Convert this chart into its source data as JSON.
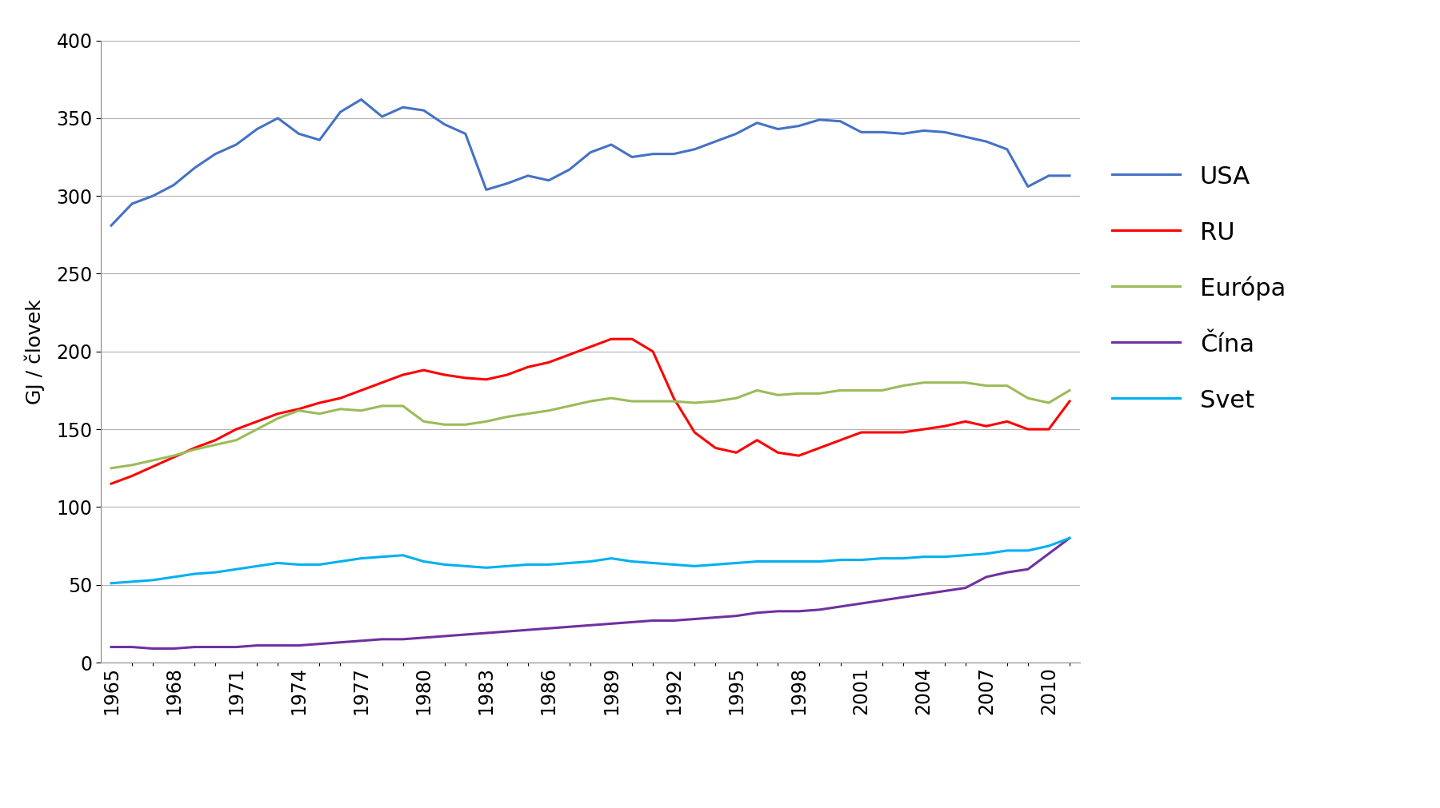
{
  "years": [
    1965,
    1966,
    1967,
    1968,
    1969,
    1970,
    1971,
    1972,
    1973,
    1974,
    1975,
    1976,
    1977,
    1978,
    1979,
    1980,
    1981,
    1982,
    1983,
    1984,
    1985,
    1986,
    1987,
    1988,
    1989,
    1990,
    1991,
    1992,
    1993,
    1994,
    1995,
    1996,
    1997,
    1998,
    1999,
    2000,
    2001,
    2002,
    2003,
    2004,
    2005,
    2006,
    2007,
    2008,
    2009,
    2010,
    2011
  ],
  "USA": [
    281,
    295,
    300,
    307,
    318,
    327,
    333,
    343,
    350,
    340,
    336,
    354,
    362,
    351,
    357,
    355,
    346,
    340,
    304,
    308,
    313,
    310,
    317,
    328,
    333,
    325,
    327,
    327,
    330,
    335,
    340,
    347,
    343,
    345,
    349,
    348,
    341,
    341,
    340,
    342,
    341,
    338,
    335,
    330,
    306,
    313,
    313
  ],
  "RU": [
    115,
    120,
    126,
    132,
    138,
    143,
    150,
    155,
    160,
    163,
    167,
    170,
    175,
    180,
    185,
    188,
    185,
    183,
    182,
    185,
    190,
    193,
    198,
    203,
    208,
    208,
    200,
    170,
    148,
    138,
    135,
    143,
    135,
    133,
    138,
    143,
    148,
    148,
    148,
    150,
    152,
    155,
    152,
    155,
    150,
    150,
    168
  ],
  "Europa": [
    125,
    127,
    130,
    133,
    137,
    140,
    143,
    150,
    157,
    162,
    160,
    163,
    162,
    165,
    165,
    155,
    153,
    153,
    155,
    158,
    160,
    162,
    165,
    168,
    170,
    168,
    168,
    168,
    167,
    168,
    170,
    175,
    172,
    173,
    173,
    175,
    175,
    175,
    178,
    180,
    180,
    180,
    178,
    178,
    170,
    167,
    175
  ],
  "Cina": [
    10,
    10,
    9,
    9,
    10,
    10,
    10,
    11,
    11,
    11,
    12,
    13,
    14,
    15,
    15,
    16,
    17,
    18,
    19,
    20,
    21,
    22,
    23,
    24,
    25,
    26,
    27,
    27,
    28,
    29,
    30,
    32,
    33,
    33,
    34,
    36,
    38,
    40,
    42,
    44,
    46,
    48,
    55,
    58,
    60,
    70,
    80
  ],
  "Svet": [
    51,
    52,
    53,
    55,
    57,
    58,
    60,
    62,
    64,
    63,
    63,
    65,
    67,
    68,
    69,
    65,
    63,
    62,
    61,
    62,
    63,
    63,
    64,
    65,
    67,
    65,
    64,
    63,
    62,
    63,
    64,
    65,
    65,
    65,
    65,
    66,
    66,
    67,
    67,
    68,
    68,
    69,
    70,
    72,
    72,
    75,
    80
  ],
  "colors": {
    "USA": "#4472C4",
    "RU": "#FF0000",
    "Europa": "#9BBB59",
    "Cina": "#7030A0",
    "Svet": "#00B0F0"
  },
  "labels": {
    "USA": "USA",
    "RU": "RU",
    "Europa": "Európa",
    "Cina": "Čína",
    "Svet": "Svet"
  },
  "ylabel": "GJ / človek",
  "ylim": [
    0,
    400
  ],
  "yticks": [
    0,
    50,
    100,
    150,
    200,
    250,
    300,
    350,
    400
  ],
  "xtick_labels": [
    "1965",
    "1968",
    "1971",
    "1974",
    "1977",
    "1980",
    "1983",
    "1986",
    "1989",
    "1992",
    "1995",
    "1998",
    "2001",
    "2004",
    "2007",
    "2010"
  ],
  "background_color": "#FFFFFF",
  "grid_color": "#B0B0B0",
  "linewidth": 2.2,
  "tick_fontsize": 17,
  "ylabel_fontsize": 18,
  "legend_fontsize": 22
}
